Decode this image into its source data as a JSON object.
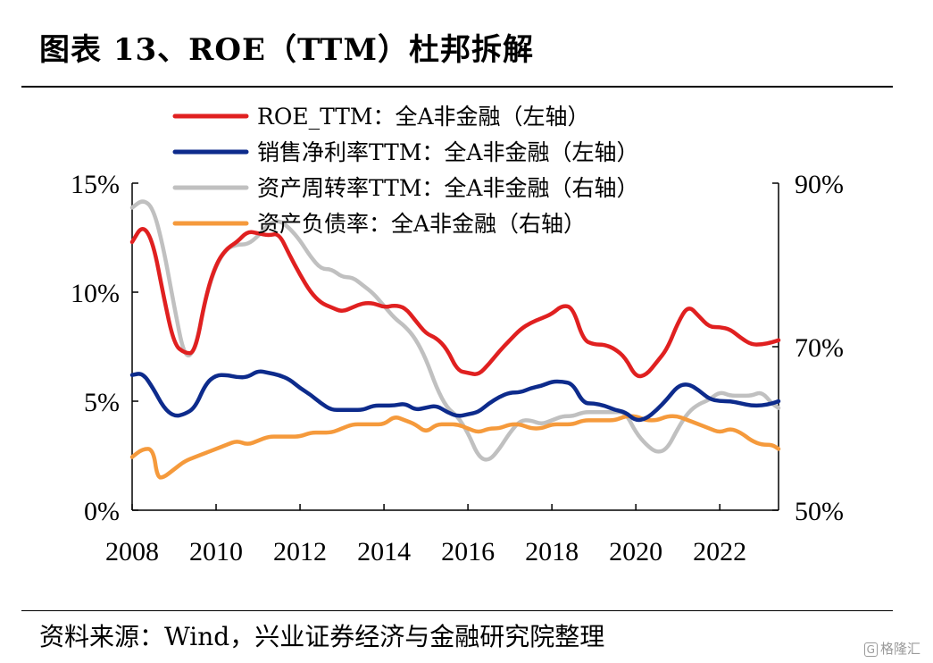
{
  "header": {
    "title": "图表 13、ROE（TTM）杜邦拆解"
  },
  "footer": {
    "source": "资料来源：Wind，兴业证券经济与金融研究院整理",
    "watermark": "格隆汇"
  },
  "chart_data": {
    "type": "line",
    "title": "图表 13、ROE（TTM）杜邦拆解",
    "x_ticks": [
      "2008",
      "2010",
      "2012",
      "2014",
      "2016",
      "2018",
      "2020",
      "2022"
    ],
    "left_axis": {
      "ticks": [
        "15%",
        "10%",
        "5%",
        "0%"
      ],
      "range": [
        0,
        15
      ]
    },
    "right_axis": {
      "ticks": [
        "90%",
        "70%",
        "50%"
      ],
      "range": [
        50,
        90
      ]
    },
    "legend_position": "top-left",
    "grid": false,
    "series": [
      {
        "name": "ROE_TTM：全A非金融（左轴）",
        "color": "#e02020",
        "axis": "left",
        "points": [
          [
            2008.0,
            12.3
          ],
          [
            2008.25,
            13.1
          ],
          [
            2008.5,
            12.3
          ],
          [
            2008.75,
            9.8
          ],
          [
            2009.0,
            7.6
          ],
          [
            2009.25,
            7.2
          ],
          [
            2009.5,
            7.2
          ],
          [
            2009.75,
            9.8
          ],
          [
            2010.0,
            11.3
          ],
          [
            2010.25,
            12.0
          ],
          [
            2010.5,
            12.3
          ],
          [
            2010.75,
            12.8
          ],
          [
            2011.0,
            12.7
          ],
          [
            2011.25,
            12.6
          ],
          [
            2011.5,
            12.7
          ],
          [
            2011.75,
            11.7
          ],
          [
            2012.0,
            10.8
          ],
          [
            2012.25,
            10.0
          ],
          [
            2012.5,
            9.5
          ],
          [
            2012.75,
            9.3
          ],
          [
            2013.0,
            9.1
          ],
          [
            2013.25,
            9.3
          ],
          [
            2013.5,
            9.5
          ],
          [
            2013.75,
            9.5
          ],
          [
            2014.0,
            9.3
          ],
          [
            2014.25,
            9.4
          ],
          [
            2014.5,
            9.3
          ],
          [
            2014.75,
            8.7
          ],
          [
            2015.0,
            8.1
          ],
          [
            2015.25,
            7.9
          ],
          [
            2015.5,
            7.4
          ],
          [
            2015.75,
            6.4
          ],
          [
            2016.0,
            6.3
          ],
          [
            2016.25,
            6.2
          ],
          [
            2016.5,
            6.7
          ],
          [
            2016.75,
            7.3
          ],
          [
            2017.0,
            7.8
          ],
          [
            2017.25,
            8.3
          ],
          [
            2017.5,
            8.6
          ],
          [
            2017.75,
            8.8
          ],
          [
            2018.0,
            9.0
          ],
          [
            2018.25,
            9.4
          ],
          [
            2018.5,
            9.3
          ],
          [
            2018.75,
            7.8
          ],
          [
            2019.0,
            7.6
          ],
          [
            2019.25,
            7.6
          ],
          [
            2019.5,
            7.4
          ],
          [
            2019.75,
            7.0
          ],
          [
            2020.0,
            6.1
          ],
          [
            2020.25,
            6.2
          ],
          [
            2020.5,
            6.8
          ],
          [
            2020.75,
            7.4
          ],
          [
            2021.0,
            8.6
          ],
          [
            2021.25,
            9.4
          ],
          [
            2021.5,
            8.9
          ],
          [
            2021.75,
            8.4
          ],
          [
            2022.0,
            8.4
          ],
          [
            2022.25,
            8.3
          ],
          [
            2022.5,
            7.9
          ],
          [
            2022.75,
            7.6
          ],
          [
            2023.0,
            7.6
          ],
          [
            2023.25,
            7.7
          ],
          [
            2023.4,
            7.8
          ]
        ]
      },
      {
        "name": "销售净利率TTM：全A非金融（左轴）",
        "color": "#0d2b8c",
        "axis": "left",
        "points": [
          [
            2008.0,
            6.2
          ],
          [
            2008.25,
            6.3
          ],
          [
            2008.5,
            5.6
          ],
          [
            2008.75,
            4.7
          ],
          [
            2009.0,
            4.3
          ],
          [
            2009.25,
            4.4
          ],
          [
            2009.5,
            4.7
          ],
          [
            2009.75,
            5.8
          ],
          [
            2010.0,
            6.2
          ],
          [
            2010.25,
            6.2
          ],
          [
            2010.5,
            6.1
          ],
          [
            2010.75,
            6.1
          ],
          [
            2011.0,
            6.4
          ],
          [
            2011.25,
            6.3
          ],
          [
            2011.5,
            6.2
          ],
          [
            2011.75,
            6.0
          ],
          [
            2012.0,
            5.6
          ],
          [
            2012.25,
            5.3
          ],
          [
            2012.5,
            4.9
          ],
          [
            2012.75,
            4.6
          ],
          [
            2013.0,
            4.6
          ],
          [
            2013.25,
            4.6
          ],
          [
            2013.5,
            4.6
          ],
          [
            2013.75,
            4.8
          ],
          [
            2014.0,
            4.8
          ],
          [
            2014.25,
            4.8
          ],
          [
            2014.5,
            4.9
          ],
          [
            2014.75,
            4.6
          ],
          [
            2015.0,
            4.7
          ],
          [
            2015.25,
            4.8
          ],
          [
            2015.5,
            4.5
          ],
          [
            2015.75,
            4.3
          ],
          [
            2016.0,
            4.4
          ],
          [
            2016.25,
            4.5
          ],
          [
            2016.5,
            4.9
          ],
          [
            2016.75,
            5.2
          ],
          [
            2017.0,
            5.4
          ],
          [
            2017.25,
            5.4
          ],
          [
            2017.5,
            5.6
          ],
          [
            2017.75,
            5.7
          ],
          [
            2018.0,
            5.9
          ],
          [
            2018.25,
            5.9
          ],
          [
            2018.5,
            5.8
          ],
          [
            2018.75,
            4.9
          ],
          [
            2019.0,
            4.9
          ],
          [
            2019.25,
            4.8
          ],
          [
            2019.5,
            4.6
          ],
          [
            2019.75,
            4.5
          ],
          [
            2020.0,
            4.1
          ],
          [
            2020.25,
            4.2
          ],
          [
            2020.5,
            4.6
          ],
          [
            2020.75,
            5.1
          ],
          [
            2021.0,
            5.7
          ],
          [
            2021.25,
            5.8
          ],
          [
            2021.5,
            5.5
          ],
          [
            2021.75,
            5.1
          ],
          [
            2022.0,
            5.0
          ],
          [
            2022.25,
            5.0
          ],
          [
            2022.5,
            4.9
          ],
          [
            2022.75,
            4.8
          ],
          [
            2023.0,
            4.8
          ],
          [
            2023.25,
            4.9
          ],
          [
            2023.4,
            5.0
          ]
        ]
      },
      {
        "name": "资产周转率TTM：全A非金融（右轴）",
        "color": "#c0c0c0",
        "axis": "right",
        "points": [
          [
            2008.0,
            87.0
          ],
          [
            2008.25,
            88.0
          ],
          [
            2008.5,
            87.0
          ],
          [
            2008.75,
            82.0
          ],
          [
            2009.0,
            75.0
          ],
          [
            2009.25,
            68.5
          ],
          [
            2009.5,
            69.5
          ],
          [
            2009.75,
            76.0
          ],
          [
            2010.0,
            80.0
          ],
          [
            2010.25,
            82.0
          ],
          [
            2010.5,
            82.5
          ],
          [
            2010.75,
            82.5
          ],
          [
            2011.0,
            83.5
          ],
          [
            2011.25,
            85.0
          ],
          [
            2011.5,
            85.5
          ],
          [
            2011.75,
            84.5
          ],
          [
            2012.0,
            83.0
          ],
          [
            2012.25,
            81.0
          ],
          [
            2012.5,
            79.5
          ],
          [
            2012.75,
            79.5
          ],
          [
            2013.0,
            78.5
          ],
          [
            2013.25,
            78.5
          ],
          [
            2013.5,
            77.5
          ],
          [
            2013.75,
            76.5
          ],
          [
            2014.0,
            75.0
          ],
          [
            2014.25,
            73.5
          ],
          [
            2014.5,
            72.5
          ],
          [
            2014.75,
            71.0
          ],
          [
            2015.0,
            68.5
          ],
          [
            2015.25,
            65.0
          ],
          [
            2015.5,
            62.5
          ],
          [
            2015.75,
            61.5
          ],
          [
            2016.0,
            59.5
          ],
          [
            2016.25,
            56.5
          ],
          [
            2016.5,
            56.0
          ],
          [
            2016.75,
            57.5
          ],
          [
            2017.0,
            59.5
          ],
          [
            2017.25,
            61.0
          ],
          [
            2017.5,
            61.0
          ],
          [
            2017.75,
            60.5
          ],
          [
            2018.0,
            61.0
          ],
          [
            2018.25,
            61.5
          ],
          [
            2018.5,
            61.5
          ],
          [
            2018.75,
            62.0
          ],
          [
            2019.0,
            62.0
          ],
          [
            2019.25,
            62.0
          ],
          [
            2019.5,
            62.0
          ],
          [
            2019.75,
            62.0
          ],
          [
            2020.0,
            59.5
          ],
          [
            2020.25,
            58.0
          ],
          [
            2020.5,
            57.0
          ],
          [
            2020.75,
            57.5
          ],
          [
            2021.0,
            60.0
          ],
          [
            2021.25,
            62.0
          ],
          [
            2021.5,
            63.0
          ],
          [
            2021.75,
            63.5
          ],
          [
            2022.0,
            64.5
          ],
          [
            2022.25,
            64.0
          ],
          [
            2022.5,
            64.0
          ],
          [
            2022.75,
            64.0
          ],
          [
            2023.0,
            64.5
          ],
          [
            2023.25,
            63.0
          ],
          [
            2023.4,
            62.5
          ]
        ]
      },
      {
        "name": "资产负债率：全A非金融（右轴）",
        "color": "#f59a3c",
        "axis": "right",
        "points": [
          [
            2008.0,
            56.5
          ],
          [
            2008.25,
            57.5
          ],
          [
            2008.5,
            57.5
          ],
          [
            2008.6,
            54.0
          ],
          [
            2008.75,
            54.0
          ],
          [
            2009.0,
            55.0
          ],
          [
            2009.25,
            56.0
          ],
          [
            2009.5,
            56.5
          ],
          [
            2009.75,
            57.0
          ],
          [
            2010.0,
            57.5
          ],
          [
            2010.25,
            58.0
          ],
          [
            2010.5,
            58.5
          ],
          [
            2010.75,
            58.0
          ],
          [
            2011.0,
            58.5
          ],
          [
            2011.25,
            59.0
          ],
          [
            2011.5,
            59.0
          ],
          [
            2011.75,
            59.0
          ],
          [
            2012.0,
            59.0
          ],
          [
            2012.25,
            59.5
          ],
          [
            2012.5,
            59.5
          ],
          [
            2012.75,
            59.5
          ],
          [
            2013.0,
            60.0
          ],
          [
            2013.25,
            60.5
          ],
          [
            2013.5,
            60.5
          ],
          [
            2013.75,
            60.5
          ],
          [
            2014.0,
            60.5
          ],
          [
            2014.25,
            61.5
          ],
          [
            2014.5,
            61.0
          ],
          [
            2014.75,
            60.5
          ],
          [
            2015.0,
            59.5
          ],
          [
            2015.25,
            60.5
          ],
          [
            2015.5,
            60.5
          ],
          [
            2015.75,
            60.5
          ],
          [
            2016.0,
            60.0
          ],
          [
            2016.25,
            59.5
          ],
          [
            2016.5,
            60.0
          ],
          [
            2016.75,
            60.0
          ],
          [
            2017.0,
            60.5
          ],
          [
            2017.25,
            60.5
          ],
          [
            2017.5,
            60.0
          ],
          [
            2017.75,
            60.0
          ],
          [
            2018.0,
            60.5
          ],
          [
            2018.25,
            60.5
          ],
          [
            2018.5,
            60.5
          ],
          [
            2018.75,
            61.0
          ],
          [
            2019.0,
            61.0
          ],
          [
            2019.25,
            61.0
          ],
          [
            2019.5,
            61.0
          ],
          [
            2019.75,
            61.5
          ],
          [
            2020.0,
            61.5
          ],
          [
            2020.25,
            61.0
          ],
          [
            2020.5,
            61.0
          ],
          [
            2020.75,
            61.5
          ],
          [
            2021.0,
            61.5
          ],
          [
            2021.25,
            61.0
          ],
          [
            2021.5,
            60.5
          ],
          [
            2021.75,
            60.0
          ],
          [
            2022.0,
            59.5
          ],
          [
            2022.25,
            60.0
          ],
          [
            2022.5,
            59.5
          ],
          [
            2022.75,
            58.5
          ],
          [
            2023.0,
            58.0
          ],
          [
            2023.25,
            58.0
          ],
          [
            2023.4,
            57.5
          ]
        ]
      }
    ]
  }
}
